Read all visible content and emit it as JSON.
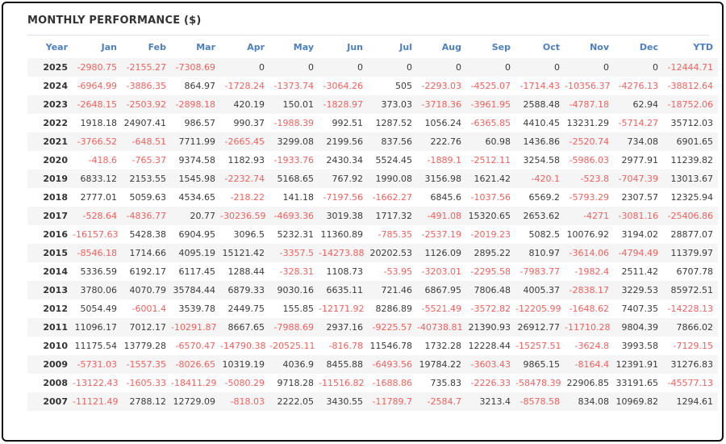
{
  "title": "MONTHLY PERFORMANCE ($)",
  "colors": {
    "header_text": "#4d7fbe",
    "negative_value": "#f4605c",
    "positive_value": "#3a3a3a",
    "row_stripe": "#f5f5f5",
    "border": "#111111"
  },
  "chart_data": {
    "type": "table",
    "title": "MONTHLY PERFORMANCE ($)",
    "columns": [
      "Year",
      "Jan",
      "Feb",
      "Mar",
      "Apr",
      "May",
      "Jun",
      "Jul",
      "Aug",
      "Sep",
      "Oct",
      "Nov",
      "Dec",
      "YTD"
    ],
    "rows": [
      {
        "year": "2025",
        "values": [
          "-2980.75",
          "-2155.27",
          "-7308.69",
          "0",
          "0",
          "0",
          "0",
          "0",
          "0",
          "0",
          "0",
          "0",
          "-12444.71"
        ]
      },
      {
        "year": "2024",
        "values": [
          "-6964.99",
          "-3886.35",
          "864.97",
          "-1728.24",
          "-1373.74",
          "-3064.26",
          "505",
          "-2293.03",
          "-4525.07",
          "-1714.43",
          "-10356.37",
          "-4276.13",
          "-38812.64"
        ]
      },
      {
        "year": "2023",
        "values": [
          "-2648.15",
          "-2503.92",
          "-2898.18",
          "420.19",
          "150.01",
          "-1828.97",
          "373.03",
          "-3718.36",
          "-3961.95",
          "2588.48",
          "-4787.18",
          "62.94",
          "-18752.06"
        ]
      },
      {
        "year": "2022",
        "values": [
          "1918.18",
          "24907.41",
          "986.57",
          "990.37",
          "-1988.39",
          "992.51",
          "1287.52",
          "1056.24",
          "-6365.85",
          "4410.45",
          "13231.29",
          "-5714.27",
          "35712.03"
        ]
      },
      {
        "year": "2021",
        "values": [
          "-3766.52",
          "-648.51",
          "7711.99",
          "-2665.45",
          "3299.08",
          "2199.56",
          "837.56",
          "222.76",
          "60.98",
          "1436.86",
          "-2520.74",
          "734.08",
          "6901.65"
        ]
      },
      {
        "year": "2020",
        "values": [
          "-418.6",
          "-765.37",
          "9374.58",
          "1182.93",
          "-1933.76",
          "2430.34",
          "5524.45",
          "-1889.1",
          "-2512.11",
          "3254.58",
          "-5986.03",
          "2977.91",
          "11239.82"
        ]
      },
      {
        "year": "2019",
        "values": [
          "6833.12",
          "2153.55",
          "1545.98",
          "-2232.74",
          "5168.65",
          "767.92",
          "1990.08",
          "3156.98",
          "1621.42",
          "-420.1",
          "-523.8",
          "-7047.39",
          "13013.67"
        ]
      },
      {
        "year": "2018",
        "values": [
          "2777.01",
          "5059.63",
          "4534.65",
          "-218.22",
          "141.18",
          "-7197.56",
          "-1662.27",
          "6845.6",
          "-1037.56",
          "6569.2",
          "-5793.29",
          "2307.57",
          "12325.94"
        ]
      },
      {
        "year": "2017",
        "values": [
          "-528.64",
          "-4836.77",
          "20.77",
          "-30236.59",
          "-4693.36",
          "3019.38",
          "1717.32",
          "-491.08",
          "15320.65",
          "2653.62",
          "-4271",
          "-3081.16",
          "-25406.86"
        ]
      },
      {
        "year": "2016",
        "values": [
          "-16157.63",
          "5428.38",
          "6904.95",
          "3096.5",
          "5232.31",
          "11360.89",
          "-785.35",
          "-2537.19",
          "-2019.23",
          "5082.5",
          "10076.92",
          "3194.02",
          "28877.07"
        ]
      },
      {
        "year": "2015",
        "values": [
          "-8546.18",
          "1714.66",
          "4095.19",
          "15121.42",
          "-3357.5",
          "-14273.88",
          "20202.53",
          "1126.09",
          "2895.22",
          "810.97",
          "-3614.06",
          "-4794.49",
          "11379.97"
        ]
      },
      {
        "year": "2014",
        "values": [
          "5336.59",
          "6192.17",
          "6117.45",
          "1288.44",
          "-328.31",
          "1108.73",
          "-53.95",
          "-3203.01",
          "-2295.58",
          "-7983.77",
          "-1982.4",
          "2511.42",
          "6707.78"
        ]
      },
      {
        "year": "2013",
        "values": [
          "3780.06",
          "4070.79",
          "35784.44",
          "6879.33",
          "9030.16",
          "6635.11",
          "721.46",
          "6867.95",
          "7806.48",
          "4005.37",
          "-2838.17",
          "3229.53",
          "85972.51"
        ]
      },
      {
        "year": "2012",
        "values": [
          "5054.49",
          "-6001.4",
          "3539.78",
          "2449.75",
          "155.85",
          "-12171.92",
          "8286.89",
          "-5521.49",
          "-3572.82",
          "-12205.99",
          "-1648.62",
          "7407.35",
          "-14228.13"
        ]
      },
      {
        "year": "2011",
        "values": [
          "11096.17",
          "7012.17",
          "-10291.87",
          "8667.65",
          "-7988.69",
          "2937.16",
          "-9225.57",
          "-40738.81",
          "21390.93",
          "26912.77",
          "-11710.28",
          "9804.39",
          "7866.02"
        ]
      },
      {
        "year": "2010",
        "values": [
          "11175.54",
          "13779.28",
          "-6570.47",
          "-14790.38",
          "-20525.11",
          "-816.78",
          "11546.78",
          "1732.28",
          "12228.44",
          "-15257.51",
          "-3624.8",
          "3993.58",
          "-7129.15"
        ]
      },
      {
        "year": "2009",
        "values": [
          "-5731.03",
          "-1557.35",
          "-8026.65",
          "10319.19",
          "4036.9",
          "8455.88",
          "-6493.56",
          "19784.22",
          "-3603.43",
          "9865.15",
          "-8164.4",
          "12391.91",
          "31276.83"
        ]
      },
      {
        "year": "2008",
        "values": [
          "-13122.43",
          "-1605.33",
          "-18411.29",
          "-5080.29",
          "9718.28",
          "-11516.82",
          "-1688.86",
          "735.83",
          "-2226.33",
          "-58478.39",
          "22906.85",
          "33191.65",
          "-45577.13"
        ]
      },
      {
        "year": "2007",
        "values": [
          "-11121.49",
          "2788.12",
          "12729.09",
          "-818.03",
          "2222.05",
          "3430.55",
          "-11789.7",
          "-2584.7",
          "3213.4",
          "-8578.58",
          "834.08",
          "10969.82",
          "1294.61"
        ]
      }
    ]
  }
}
